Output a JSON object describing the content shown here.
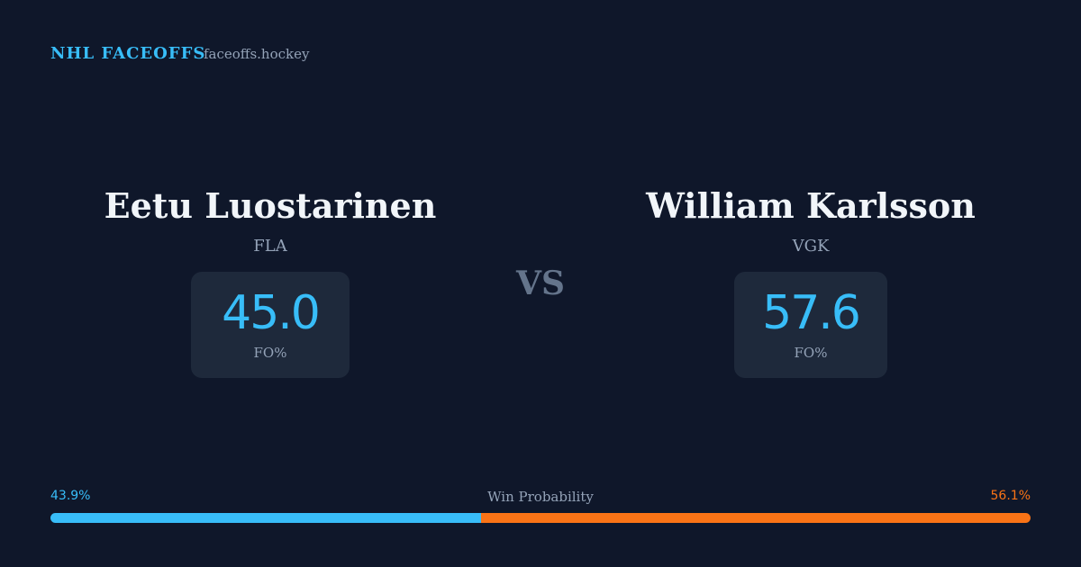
{
  "header": {
    "brand": "NHL FACEOFFS",
    "site": "faceoffs.hockey"
  },
  "players": [
    {
      "name": "Eetu Luostarinen",
      "team": "FLA",
      "stat": "45.0",
      "stat_label": "FO%"
    },
    {
      "name": "William Karlsson",
      "team": "VGK",
      "stat": "57.6",
      "stat_label": "FO%"
    }
  ],
  "versus": "VS",
  "win_probability": {
    "title": "Win Probability",
    "values": [
      43.9,
      56.1
    ],
    "value_labels": [
      "43.9%",
      "56.1%"
    ],
    "colors": [
      "#38bdf8",
      "#f97316"
    ]
  }
}
